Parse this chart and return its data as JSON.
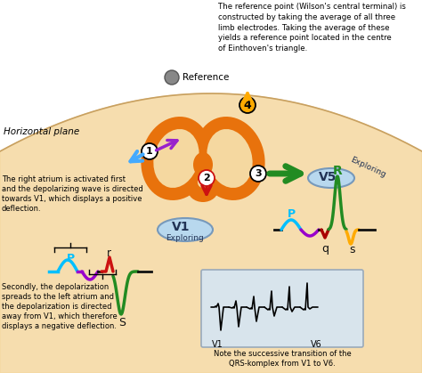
{
  "bg_color": "#ffffff",
  "body_fill": "#f5d8a0",
  "heart_color": "#e8720c",
  "heart_inner": "#f5d8a0",
  "electrode_fill": "#b8d8ee",
  "electrode_edge": "#7799bb",
  "ref_text": "The reference point (Wilson's central terminal) is\nconstructed by taking the average of all three\nlimb electrodes. Taking the average of these\nyields a reference point located in the centre\nof Einthoven's triangle.",
  "ref_label": "Reference",
  "horiz_label": "Horizontal plane",
  "text_ra": "The right atrium is activated first\nand the depolarizing wave is directed\ntowards V1, which displays a positive\ndeflection.",
  "text_la": "Secondly, the depolarization\nspreads to the left atrium and\nthe depolarization is directed\naway from V1, which therefore\ndisplays a negative deflection.",
  "text_qrs": "Note the successive transition of the\nQRS-komplex from V1 to V6.",
  "cyan": "#00bfff",
  "purple": "#9900cc",
  "red": "#cc1111",
  "dark_red": "#aa0000",
  "green": "#228b22",
  "orange": "#ffaa00",
  "blue_arr": "#44aaff",
  "purple_arr": "#9922cc",
  "red_arr": "#cc1111",
  "black": "#111111",
  "gray": "#777777"
}
